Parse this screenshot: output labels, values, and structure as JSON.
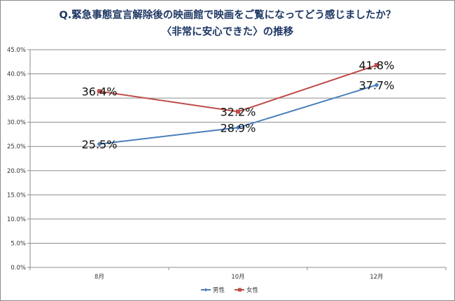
{
  "chart_data": {
    "type": "line",
    "title": "Q.緊急事態宣言解除後の映画館で映画をご覧になってどう感じましたか？",
    "subtitle": "〈非常に安心できた〉の推移",
    "categories": [
      "8月",
      "10月",
      "12月"
    ],
    "series": [
      {
        "name": "男性",
        "values": [
          25.5,
          28.9,
          37.7
        ],
        "color": "#4a7ebb",
        "labels": [
          "25.5%",
          "28.9%",
          "37.7%"
        ]
      },
      {
        "name": "女性",
        "values": [
          36.4,
          32.2,
          41.8
        ],
        "color": "#be4b48",
        "labels": [
          "36.4%",
          "32.2%",
          "41.8%"
        ]
      }
    ],
    "ylim": [
      0,
      45
    ],
    "yticks": [
      0,
      5,
      10,
      15,
      20,
      25,
      30,
      35,
      40,
      45
    ],
    "ytick_labels": [
      "0.0%",
      "5.0%",
      "10.0%",
      "15.0%",
      "20.0%",
      "25.0%",
      "30.0%",
      "35.0%",
      "40.0%",
      "45.0%"
    ],
    "grid": true,
    "legend_position": "bottom-center",
    "xlabel": "",
    "ylabel": ""
  }
}
